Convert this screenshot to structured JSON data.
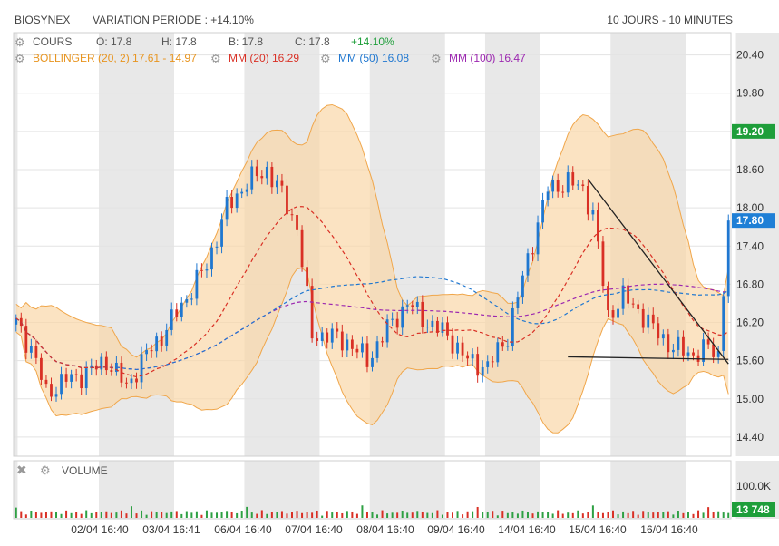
{
  "header": {
    "symbol": "BIOSYNEX",
    "variation": "VARIATION PERIODE : +14.10%",
    "period": "10 JOURS - 10 MINUTES"
  },
  "legend": {
    "cours_label": "COURS",
    "open": "O: 17.8",
    "high": "H: 17.8",
    "low": "B: 17.8",
    "close": "C: 17.8",
    "change": "+14.10%",
    "bollinger": "BOLLINGER (20, 2)  17.61 - 14.97",
    "mm20": "MM (20)  16.29",
    "mm50": "MM (50)  16.08",
    "mm100": "MM (100)  16.47"
  },
  "volume_panel": {
    "label": "VOLUME",
    "axis_label": "100.0K",
    "last_badge": "13 748"
  },
  "colors": {
    "up": "#1f77d0",
    "down": "#d93025",
    "band_fill": "#f9d7a8",
    "band_line": "#f0a64a",
    "mm20": "#d93025",
    "mm50": "#1f77d0",
    "mm100": "#9c27b0",
    "badge_high": "#1e9e3a",
    "badge_last": "#1e7fd6",
    "volume_up": "#2ea043",
    "volume_down": "#d93025",
    "shade": "#e8e8e8",
    "change_green": "#1e9e3a"
  },
  "chart_data": {
    "type": "candlestick",
    "y_ticks": [
      "20.40",
      "19.80",
      "19.20",
      "18.60",
      "18.00",
      "17.40",
      "16.80",
      "16.20",
      "15.60",
      "15.00",
      "14.40"
    ],
    "ylim": [
      14.1,
      20.75
    ],
    "x_labels": [
      "02/04 16:40",
      "03/04 16:41",
      "06/04 16:40",
      "07/04 16:40",
      "08/04 16:40",
      "09/04 16:40",
      "14/04 16:40",
      "15/04 16:40",
      "16/04 16:40"
    ],
    "price_badges": [
      {
        "label": "19.20",
        "value": 19.2
      },
      {
        "label": "17.80",
        "value": 17.8
      }
    ],
    "anchors": [
      [
        0,
        16.2
      ],
      [
        3,
        15.8
      ],
      [
        6,
        15.1
      ],
      [
        10,
        15.3
      ],
      [
        14,
        15.4
      ],
      [
        18,
        15.6
      ],
      [
        22,
        15.2
      ],
      [
        26,
        15.7
      ],
      [
        30,
        16.1
      ],
      [
        34,
        16.6
      ],
      [
        38,
        17.1
      ],
      [
        42,
        18.0
      ],
      [
        46,
        18.4
      ],
      [
        50,
        18.6
      ],
      [
        53,
        18.2
      ],
      [
        56,
        17.7
      ],
      [
        59,
        16.0
      ],
      [
        62,
        16.0
      ],
      [
        66,
        15.9
      ],
      [
        70,
        15.6
      ],
      [
        74,
        16.1
      ],
      [
        78,
        16.5
      ],
      [
        82,
        16.2
      ],
      [
        86,
        16.0
      ],
      [
        90,
        15.6
      ],
      [
        94,
        15.5
      ],
      [
        98,
        16.0
      ],
      [
        102,
        17.2
      ],
      [
        106,
        18.3
      ],
      [
        110,
        18.4
      ],
      [
        113,
        18.3
      ],
      [
        115,
        17.9
      ],
      [
        118,
        16.3
      ],
      [
        121,
        16.6
      ],
      [
        124,
        16.4
      ],
      [
        127,
        16.1
      ],
      [
        131,
        15.8
      ],
      [
        135,
        15.7
      ],
      [
        138,
        15.8
      ],
      [
        140,
        15.7
      ],
      [
        142,
        17.8
      ]
    ],
    "trend_lines": [
      {
        "x1": 114,
        "y1": 18.45,
        "x2": 142,
        "y2": 15.55
      },
      {
        "x1": 110,
        "y1": 15.66,
        "x2": 142,
        "y2": 15.62
      }
    ]
  }
}
